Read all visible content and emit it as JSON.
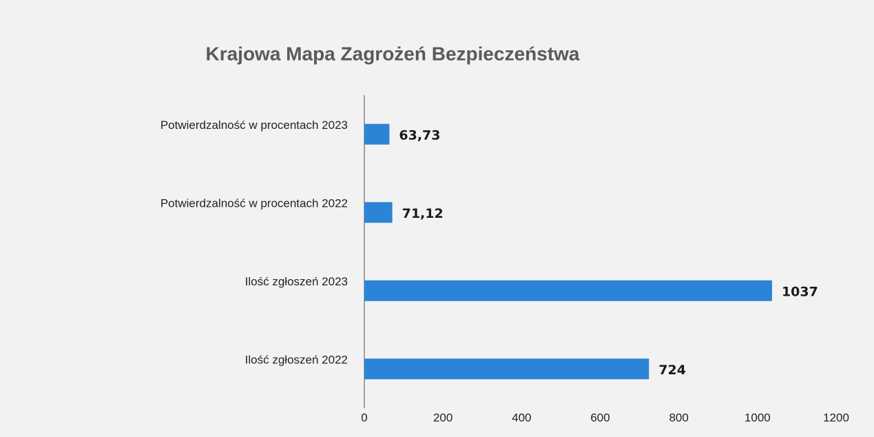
{
  "chart_data": {
    "type": "bar",
    "orientation": "horizontal",
    "title": "Krajowa Mapa Zagrożeń Bezpieczeństwa",
    "categories": [
      "Potwierdzalność w procentach 2023",
      "Potwierdzalność w procentach 2022",
      "Ilość zgłoszeń 2023",
      "Ilość zgłoszeń 2022"
    ],
    "values": [
      63.73,
      71.12,
      1037,
      724
    ],
    "value_labels": [
      "63,73",
      "71,12",
      "1037",
      "724"
    ],
    "color": "#2b84d6",
    "xlim": [
      0,
      1200
    ],
    "xticks": [
      0,
      200,
      400,
      600,
      800,
      1000,
      1200
    ],
    "grid": false
  }
}
